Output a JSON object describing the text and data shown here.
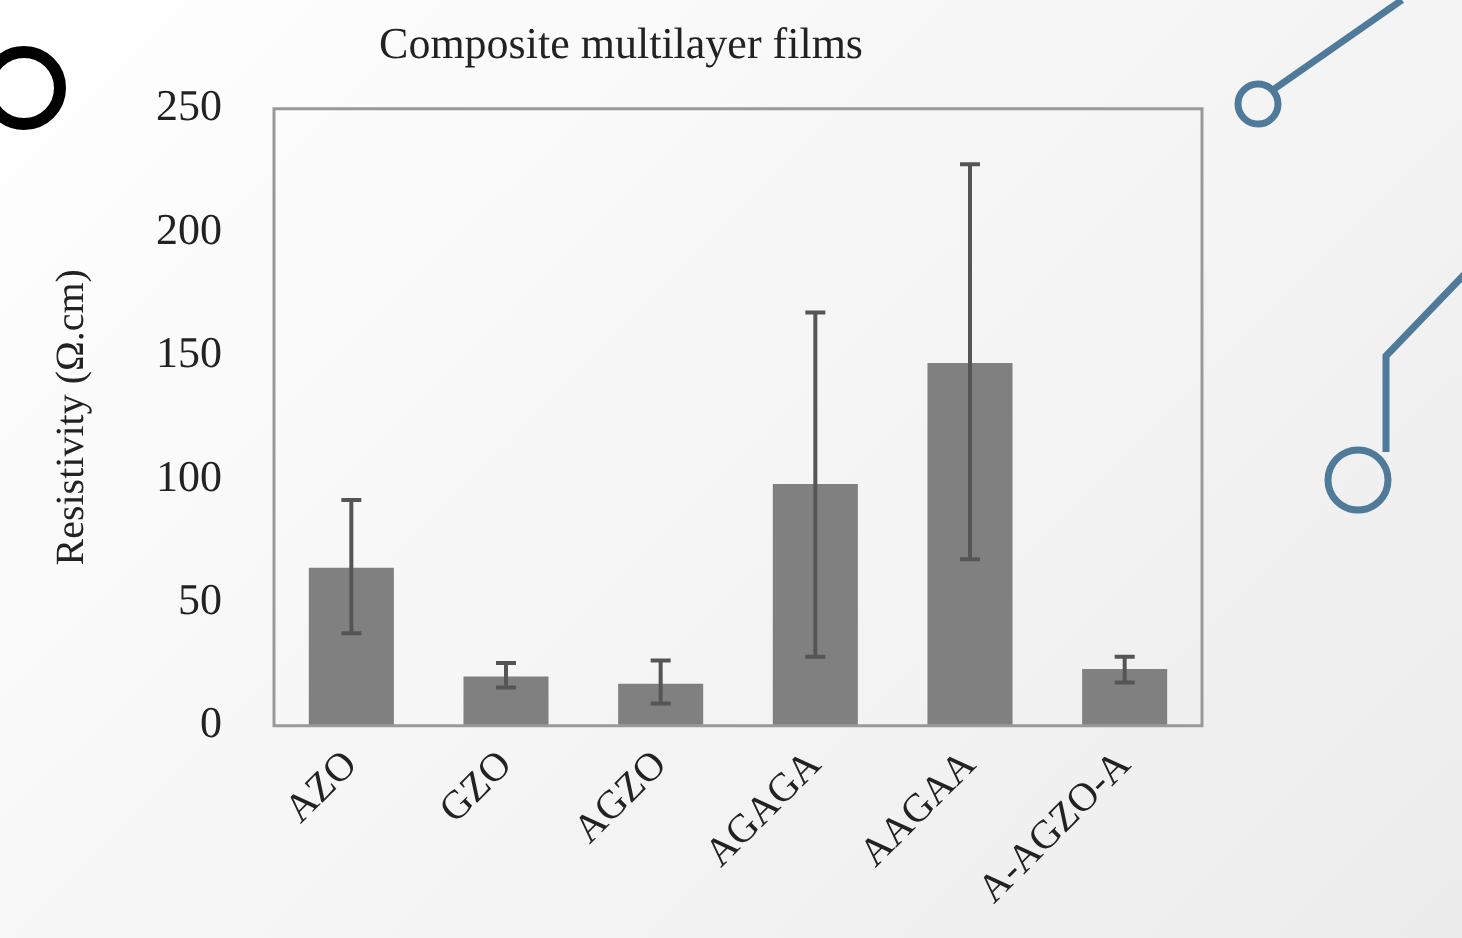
{
  "chart_data": {
    "type": "bar",
    "title": "Composite multilayer films",
    "ylabel": "Resistivity (Ω.cm)",
    "categories": [
      "AZO",
      "GZO",
      "AGZO",
      "AGAGA",
      "AAGAA",
      "A-AGZO-A"
    ],
    "values": [
      64,
      20,
      17,
      98,
      147,
      23
    ],
    "errors": [
      [
        37.5,
        91.5
      ],
      [
        15.5,
        25.5
      ],
      [
        9,
        26.5
      ],
      [
        28,
        167.5
      ],
      [
        67.5,
        227.5
      ],
      [
        17.5,
        28
      ]
    ],
    "color": "#808080",
    "ylim": [
      0,
      250
    ],
    "yticks": [
      0,
      50,
      100,
      150,
      200,
      250
    ],
    "grid": false,
    "legend": false
  }
}
